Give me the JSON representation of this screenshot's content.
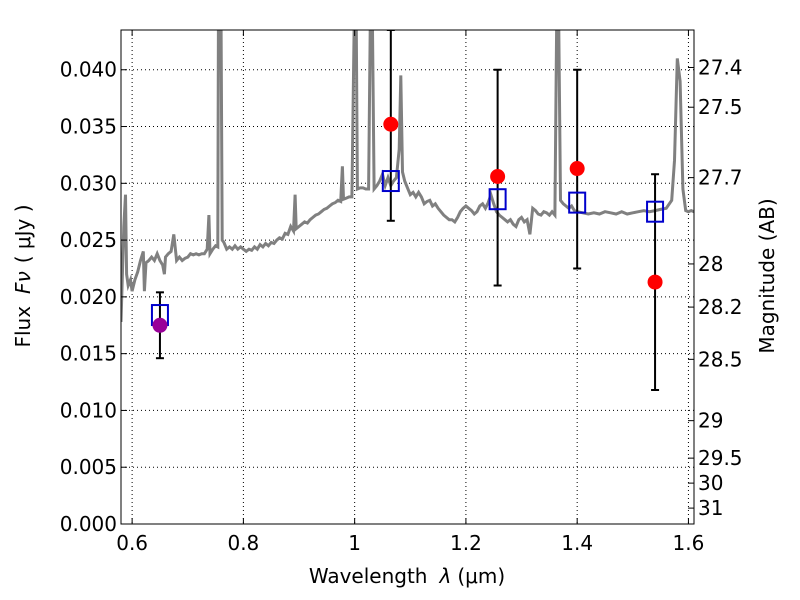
{
  "chart_data": {
    "type": "scatter",
    "xlabel_prefix": "Wavelength",
    "xlabel_symbol": "λ",
    "xlabel_unit": "(μm)",
    "ylabel_prefix": "Flux",
    "ylabel_symbol": "Fν",
    "ylabel_unit": "( μJy )",
    "y2label": "Magnitude (AB)",
    "xlim": [
      0.58,
      1.61
    ],
    "ylim": [
      0.0,
      0.0435
    ],
    "grid": true,
    "x_ticks": [
      0.6,
      0.8,
      1.0,
      1.2,
      1.4,
      1.6
    ],
    "x_tick_labels": [
      "0.6",
      "0.8",
      "1",
      "1.2",
      "1.4",
      "1.6"
    ],
    "y_ticks": [
      0.0,
      0.005,
      0.01,
      0.015,
      0.02,
      0.025,
      0.03,
      0.035,
      0.04
    ],
    "y_tick_labels": [
      "0.000",
      "0.005",
      "0.010",
      "0.015",
      "0.020",
      "0.025",
      "0.030",
      "0.035",
      "0.040"
    ],
    "mag_ticks": [
      {
        "flux": 0.0402,
        "label": "27.4"
      },
      {
        "flux": 0.0367,
        "label": "27.5"
      },
      {
        "flux": 0.0305,
        "label": "27.7"
      },
      {
        "flux": 0.0229,
        "label": "28"
      },
      {
        "flux": 0.0191,
        "label": "28.2"
      },
      {
        "flux": 0.0145,
        "label": "28.5"
      },
      {
        "flux": 0.0091,
        "label": "29"
      },
      {
        "flux": 0.0058,
        "label": "29.5"
      },
      {
        "flux": 0.0036,
        "label": "30"
      },
      {
        "flux": 0.0014,
        "label": "31"
      }
    ],
    "colors": {
      "spectrum": "#808080",
      "model_box": "#0000cc",
      "observed": "#ff0000",
      "highlight": "#990099",
      "errorbar": "#000000",
      "grid": "#000000"
    },
    "spectrum": [
      [
        0.58,
        0.0178
      ],
      [
        0.585,
        0.0262
      ],
      [
        0.588,
        0.029
      ],
      [
        0.59,
        0.022
      ],
      [
        0.593,
        0.021
      ],
      [
        0.597,
        0.0215
      ],
      [
        0.6,
        0.0205
      ],
      [
        0.605,
        0.0215
      ],
      [
        0.61,
        0.0222
      ],
      [
        0.615,
        0.0232
      ],
      [
        0.62,
        0.024
      ],
      [
        0.622,
        0.0205
      ],
      [
        0.625,
        0.023
      ],
      [
        0.63,
        0.0232
      ],
      [
        0.635,
        0.0235
      ],
      [
        0.64,
        0.0232
      ],
      [
        0.645,
        0.0238
      ],
      [
        0.65,
        0.0232
      ],
      [
        0.655,
        0.0228
      ],
      [
        0.658,
        0.022
      ],
      [
        0.66,
        0.0235
      ],
      [
        0.665,
        0.0238
      ],
      [
        0.67,
        0.024
      ],
      [
        0.675,
        0.0255
      ],
      [
        0.68,
        0.0232
      ],
      [
        0.685,
        0.0235
      ],
      [
        0.69,
        0.0232
      ],
      [
        0.695,
        0.0234
      ],
      [
        0.7,
        0.0235
      ],
      [
        0.705,
        0.0238
      ],
      [
        0.71,
        0.0237
      ],
      [
        0.715,
        0.0238
      ],
      [
        0.72,
        0.0237
      ],
      [
        0.725,
        0.0238
      ],
      [
        0.73,
        0.0238
      ],
      [
        0.735,
        0.0242
      ],
      [
        0.738,
        0.0272
      ],
      [
        0.74,
        0.0238
      ],
      [
        0.745,
        0.0242
      ],
      [
        0.75,
        0.0245
      ],
      [
        0.754,
        0.0244
      ],
      [
        0.755,
        0.0435
      ],
      [
        0.76,
        0.0435
      ],
      [
        0.762,
        0.025
      ],
      [
        0.765,
        0.0248
      ],
      [
        0.77,
        0.0242
      ],
      [
        0.775,
        0.0244
      ],
      [
        0.78,
        0.0242
      ],
      [
        0.785,
        0.0245
      ],
      [
        0.79,
        0.0242
      ],
      [
        0.795,
        0.0244
      ],
      [
        0.8,
        0.0242
      ],
      [
        0.805,
        0.024
      ],
      [
        0.81,
        0.0242
      ],
      [
        0.815,
        0.0241
      ],
      [
        0.82,
        0.0244
      ],
      [
        0.825,
        0.0242
      ],
      [
        0.83,
        0.0246
      ],
      [
        0.835,
        0.0244
      ],
      [
        0.84,
        0.0247
      ],
      [
        0.845,
        0.0245
      ],
      [
        0.85,
        0.0248
      ],
      [
        0.855,
        0.0247
      ],
      [
        0.86,
        0.025
      ],
      [
        0.865,
        0.0252
      ],
      [
        0.87,
        0.0251
      ],
      [
        0.875,
        0.0256
      ],
      [
        0.88,
        0.0255
      ],
      [
        0.885,
        0.0262
      ],
      [
        0.89,
        0.0258
      ],
      [
        0.893,
        0.029
      ],
      [
        0.895,
        0.026
      ],
      [
        0.9,
        0.0262
      ],
      [
        0.905,
        0.0264
      ],
      [
        0.91,
        0.0266
      ],
      [
        0.915,
        0.0265
      ],
      [
        0.92,
        0.0268
      ],
      [
        0.925,
        0.027
      ],
      [
        0.93,
        0.0272
      ],
      [
        0.935,
        0.0273
      ],
      [
        0.94,
        0.0275
      ],
      [
        0.945,
        0.0277
      ],
      [
        0.95,
        0.0278
      ],
      [
        0.955,
        0.028
      ],
      [
        0.96,
        0.0282
      ],
      [
        0.965,
        0.0283
      ],
      [
        0.97,
        0.0285
      ],
      [
        0.975,
        0.0284
      ],
      [
        0.978,
        0.0315
      ],
      [
        0.98,
        0.0286
      ],
      [
        0.985,
        0.0287
      ],
      [
        0.99,
        0.0288
      ],
      [
        0.995,
        0.0288
      ],
      [
        0.999,
        0.0435
      ],
      [
        1.003,
        0.0435
      ],
      [
        1.005,
        0.0295
      ],
      [
        1.01,
        0.0296
      ],
      [
        1.015,
        0.0296
      ],
      [
        1.02,
        0.0295
      ],
      [
        1.025,
        0.0295
      ],
      [
        1.028,
        0.0435
      ],
      [
        1.032,
        0.0435
      ],
      [
        1.035,
        0.0295
      ],
      [
        1.04,
        0.0298
      ],
      [
        1.045,
        0.0302
      ],
      [
        1.05,
        0.0308
      ],
      [
        1.055,
        0.0298
      ],
      [
        1.06,
        0.0305
      ],
      [
        1.065,
        0.0298
      ],
      [
        1.07,
        0.0302
      ],
      [
        1.075,
        0.0305
      ],
      [
        1.08,
        0.033
      ],
      [
        1.083,
        0.0395
      ],
      [
        1.086,
        0.031
      ],
      [
        1.09,
        0.0302
      ],
      [
        1.095,
        0.0296
      ],
      [
        1.1,
        0.029
      ],
      [
        1.105,
        0.0292
      ],
      [
        1.11,
        0.0288
      ],
      [
        1.115,
        0.0292
      ],
      [
        1.12,
        0.0288
      ],
      [
        1.125,
        0.0282
      ],
      [
        1.13,
        0.0284
      ],
      [
        1.135,
        0.0285
      ],
      [
        1.14,
        0.028
      ],
      [
        1.145,
        0.0282
      ],
      [
        1.15,
        0.0278
      ],
      [
        1.155,
        0.0275
      ],
      [
        1.16,
        0.0272
      ],
      [
        1.165,
        0.027
      ],
      [
        1.17,
        0.0268
      ],
      [
        1.175,
        0.0268
      ],
      [
        1.18,
        0.0266
      ],
      [
        1.185,
        0.027
      ],
      [
        1.19,
        0.0275
      ],
      [
        1.195,
        0.0278
      ],
      [
        1.2,
        0.028
      ],
      [
        1.205,
        0.0278
      ],
      [
        1.21,
        0.0276
      ],
      [
        1.215,
        0.0273
      ],
      [
        1.22,
        0.0275
      ],
      [
        1.225,
        0.028
      ],
      [
        1.23,
        0.0282
      ],
      [
        1.235,
        0.0278
      ],
      [
        1.24,
        0.0283
      ],
      [
        1.245,
        0.029
      ],
      [
        1.25,
        0.0282
      ],
      [
        1.255,
        0.0275
      ],
      [
        1.26,
        0.0272
      ],
      [
        1.265,
        0.027
      ],
      [
        1.27,
        0.0268
      ],
      [
        1.275,
        0.0266
      ],
      [
        1.28,
        0.0268
      ],
      [
        1.285,
        0.0264
      ],
      [
        1.29,
        0.0262
      ],
      [
        1.295,
        0.0268
      ],
      [
        1.3,
        0.027
      ],
      [
        1.305,
        0.0266
      ],
      [
        1.31,
        0.0268
      ],
      [
        1.315,
        0.0255
      ],
      [
        1.32,
        0.0278
      ],
      [
        1.325,
        0.0276
      ],
      [
        1.33,
        0.0273
      ],
      [
        1.335,
        0.0272
      ],
      [
        1.34,
        0.0275
      ],
      [
        1.345,
        0.0274
      ],
      [
        1.35,
        0.0272
      ],
      [
        1.355,
        0.0275
      ],
      [
        1.36,
        0.0272
      ],
      [
        1.363,
        0.0435
      ],
      [
        1.367,
        0.0435
      ],
      [
        1.37,
        0.0285
      ],
      [
        1.375,
        0.0282
      ],
      [
        1.38,
        0.028
      ],
      [
        1.385,
        0.0278
      ],
      [
        1.39,
        0.028
      ],
      [
        1.395,
        0.0276
      ],
      [
        1.4,
        0.0275
      ],
      [
        1.41,
        0.0274
      ],
      [
        1.42,
        0.0273
      ],
      [
        1.43,
        0.0274
      ],
      [
        1.44,
        0.0273
      ],
      [
        1.45,
        0.0275
      ],
      [
        1.46,
        0.0274
      ],
      [
        1.47,
        0.0273
      ],
      [
        1.48,
        0.0275
      ],
      [
        1.49,
        0.0273
      ],
      [
        1.5,
        0.0274
      ],
      [
        1.51,
        0.0275
      ],
      [
        1.52,
        0.0276
      ],
      [
        1.53,
        0.0275
      ],
      [
        1.54,
        0.0276
      ],
      [
        1.55,
        0.0277
      ],
      [
        1.56,
        0.0278
      ],
      [
        1.57,
        0.0285
      ],
      [
        1.575,
        0.032
      ],
      [
        1.58,
        0.041
      ],
      [
        1.585,
        0.039
      ],
      [
        1.59,
        0.0295
      ],
      [
        1.595,
        0.0276
      ],
      [
        1.6,
        0.0275
      ],
      [
        1.605,
        0.0276
      ],
      [
        1.61,
        0.0275
      ]
    ],
    "model_boxes": [
      {
        "x": 0.65,
        "y": 0.0184
      },
      {
        "x": 1.065,
        "y": 0.0302
      },
      {
        "x": 1.257,
        "y": 0.0286
      },
      {
        "x": 1.4,
        "y": 0.0283
      },
      {
        "x": 1.54,
        "y": 0.0275
      }
    ],
    "observed": [
      {
        "x": 0.65,
        "y": 0.0175,
        "err_low": 0.0146,
        "err_high": 0.0204,
        "color": "#990099"
      },
      {
        "x": 1.065,
        "y": 0.0352,
        "err_low": 0.0267,
        "err_high": 0.0435,
        "color": "#ff0000"
      },
      {
        "x": 1.257,
        "y": 0.0306,
        "err_low": 0.021,
        "err_high": 0.04,
        "color": "#ff0000"
      },
      {
        "x": 1.4,
        "y": 0.0313,
        "err_low": 0.0225,
        "err_high": 0.04,
        "color": "#ff0000"
      },
      {
        "x": 1.54,
        "y": 0.0213,
        "err_low": 0.0118,
        "err_high": 0.0308,
        "color": "#ff0000"
      }
    ]
  }
}
